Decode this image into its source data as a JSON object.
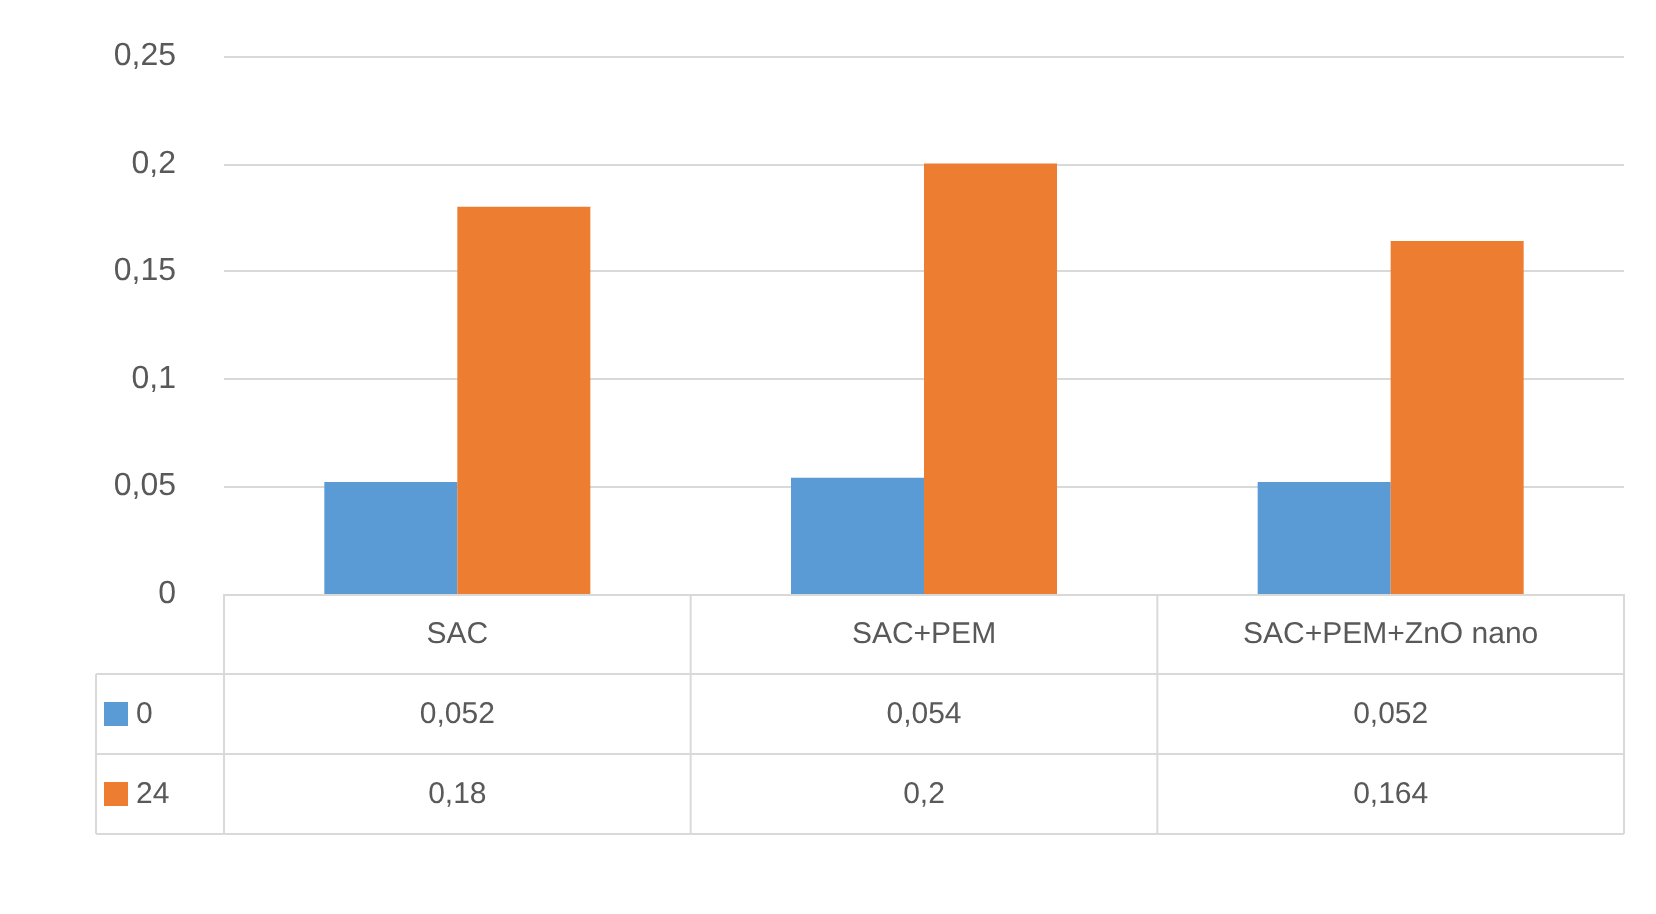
{
  "chart_data": {
    "type": "bar",
    "categories": [
      "SAC",
      "SAC+PEM",
      "SAC+PEM+ZnO nano"
    ],
    "series": [
      {
        "name": "0",
        "color": "#5b9bd5",
        "values": [
          0.052,
          0.054,
          0.052
        ],
        "value_labels": [
          "0,052",
          "0,054",
          "0,052"
        ]
      },
      {
        "name": "24",
        "color": "#ed7d31",
        "values": [
          0.18,
          0.2,
          0.164
        ],
        "value_labels": [
          "0,18",
          "0,2",
          "0,164"
        ]
      }
    ],
    "ylim": [
      0,
      0.25
    ],
    "yticks": [
      {
        "value": 0,
        "label": "0"
      },
      {
        "value": 0.05,
        "label": "0,05"
      },
      {
        "value": 0.1,
        "label": "0,1"
      },
      {
        "value": 0.15,
        "label": "0,15"
      },
      {
        "value": 0.2,
        "label": "0,2"
      },
      {
        "value": 0.25,
        "label": "0,25"
      }
    ],
    "grid": "y",
    "legend": "bottom left"
  }
}
